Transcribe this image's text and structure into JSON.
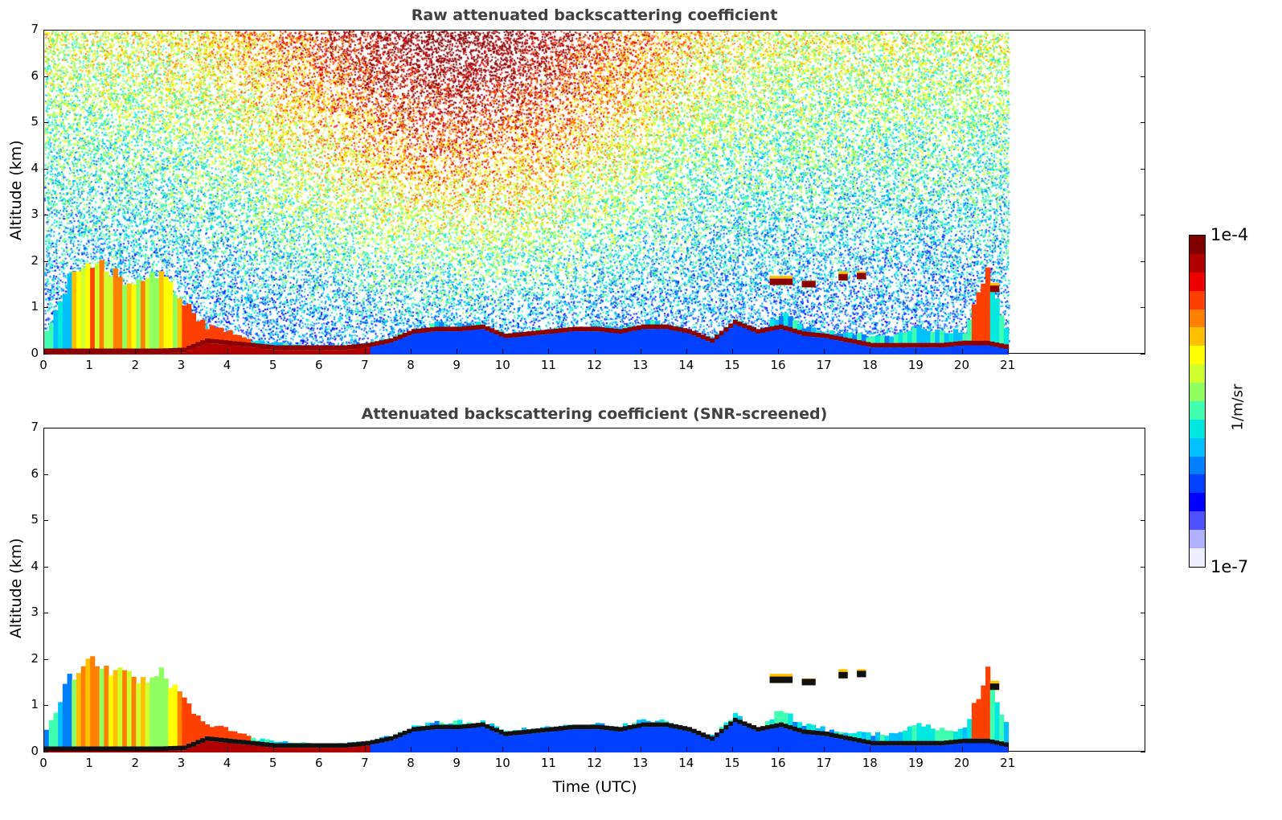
{
  "chart_data": [
    {
      "type": "heatmap",
      "title": "Raw attenuated backscattering coefficient",
      "xlabel": "",
      "ylabel": "Altitude (km)",
      "xlim": [
        0,
        24
      ],
      "ylim": [
        0,
        7
      ],
      "xticks": [
        "0",
        "1",
        "2",
        "3",
        "4",
        "5",
        "6",
        "7",
        "8",
        "9",
        "10",
        "11",
        "12",
        "13",
        "14",
        "15",
        "16",
        "17",
        "18",
        "19",
        "20",
        "21"
      ],
      "yticks": [
        "0",
        "1",
        "2",
        "3",
        "4",
        "5",
        "6",
        "7"
      ],
      "data_end_hour": 21,
      "noise": true
    },
    {
      "type": "heatmap",
      "title": "Attenuated backscattering coefficient (SNR-screened)",
      "xlabel": "Time (UTC)",
      "ylabel": "Altitude (km)",
      "xlim": [
        0,
        24
      ],
      "ylim": [
        0,
        7
      ],
      "xticks": [
        "0",
        "1",
        "2",
        "3",
        "4",
        "5",
        "6",
        "7",
        "8",
        "9",
        "10",
        "11",
        "12",
        "13",
        "14",
        "15",
        "16",
        "17",
        "18",
        "19",
        "20",
        "21"
      ],
      "yticks": [
        "0",
        "1",
        "2",
        "3",
        "4",
        "5",
        "6",
        "7"
      ],
      "data_end_hour": 21,
      "noise": false
    }
  ],
  "profile": {
    "hours": [
      0,
      0.5,
      1,
      1.5,
      2,
      2.5,
      3,
      3.5,
      4,
      4.5,
      5,
      5.5,
      6,
      6.5,
      7,
      7.5,
      8,
      8.5,
      9,
      9.5,
      10,
      10.5,
      11,
      11.5,
      12,
      12.5,
      13,
      13.5,
      14,
      14.5,
      15,
      15.5,
      16,
      16.5,
      17,
      17.5,
      18,
      18.5,
      19,
      19.5,
      20,
      20.5,
      21
    ],
    "aerosol_top_km": [
      0.5,
      1.6,
      2.0,
      1.7,
      1.6,
      1.7,
      1.1,
      0.6,
      0.5,
      0.3,
      0.25,
      0.22,
      0.2,
      0.2,
      0.25,
      0.35,
      0.55,
      0.65,
      0.65,
      0.65,
      0.45,
      0.5,
      0.55,
      0.55,
      0.6,
      0.55,
      0.7,
      0.65,
      0.5,
      0.35,
      0.8,
      0.5,
      0.9,
      0.6,
      0.5,
      0.45,
      0.4,
      0.4,
      0.6,
      0.5,
      0.5,
      1.8,
      0.3
    ],
    "strong_layer_km": [
      0.08,
      0.08,
      0.08,
      0.08,
      0.08,
      0.08,
      0.1,
      0.3,
      0.25,
      0.2,
      0.15,
      0.15,
      0.15,
      0.15,
      0.2,
      0.3,
      0.5,
      0.55,
      0.55,
      0.6,
      0.4,
      0.45,
      0.5,
      0.55,
      0.55,
      0.5,
      0.6,
      0.6,
      0.5,
      0.3,
      0.7,
      0.5,
      0.6,
      0.45,
      0.4,
      0.3,
      0.2,
      0.2,
      0.2,
      0.2,
      0.25,
      0.25,
      0.15
    ]
  },
  "clouds": [
    {
      "start": 15.8,
      "end": 16.3,
      "base": 1.5,
      "top": 1.7
    },
    {
      "start": 16.5,
      "end": 16.8,
      "base": 1.5,
      "top": 1.6
    },
    {
      "start": 17.3,
      "end": 17.5,
      "base": 1.6,
      "top": 1.8
    },
    {
      "start": 17.7,
      "end": 17.9,
      "base": 1.65,
      "top": 1.8
    },
    {
      "start": 20.6,
      "end": 20.8,
      "base": 1.35,
      "top": 1.55
    }
  ],
  "colorbar": {
    "label": "1/m/sr",
    "max_label": "1e-4",
    "min_label": "1e-7",
    "colors": [
      "#eeeeff",
      "#b0b0ff",
      "#5050ff",
      "#0000ff",
      "#0040ff",
      "#0080ff",
      "#00c0ff",
      "#00e8e0",
      "#40ff b0",
      "#90ff60",
      "#d0ff30",
      "#ffff00",
      "#ffc000",
      "#ff8000",
      "#ff4000",
      "#ee0000",
      "#b00000",
      "#800000"
    ]
  },
  "strong_color": "#8b0000"
}
